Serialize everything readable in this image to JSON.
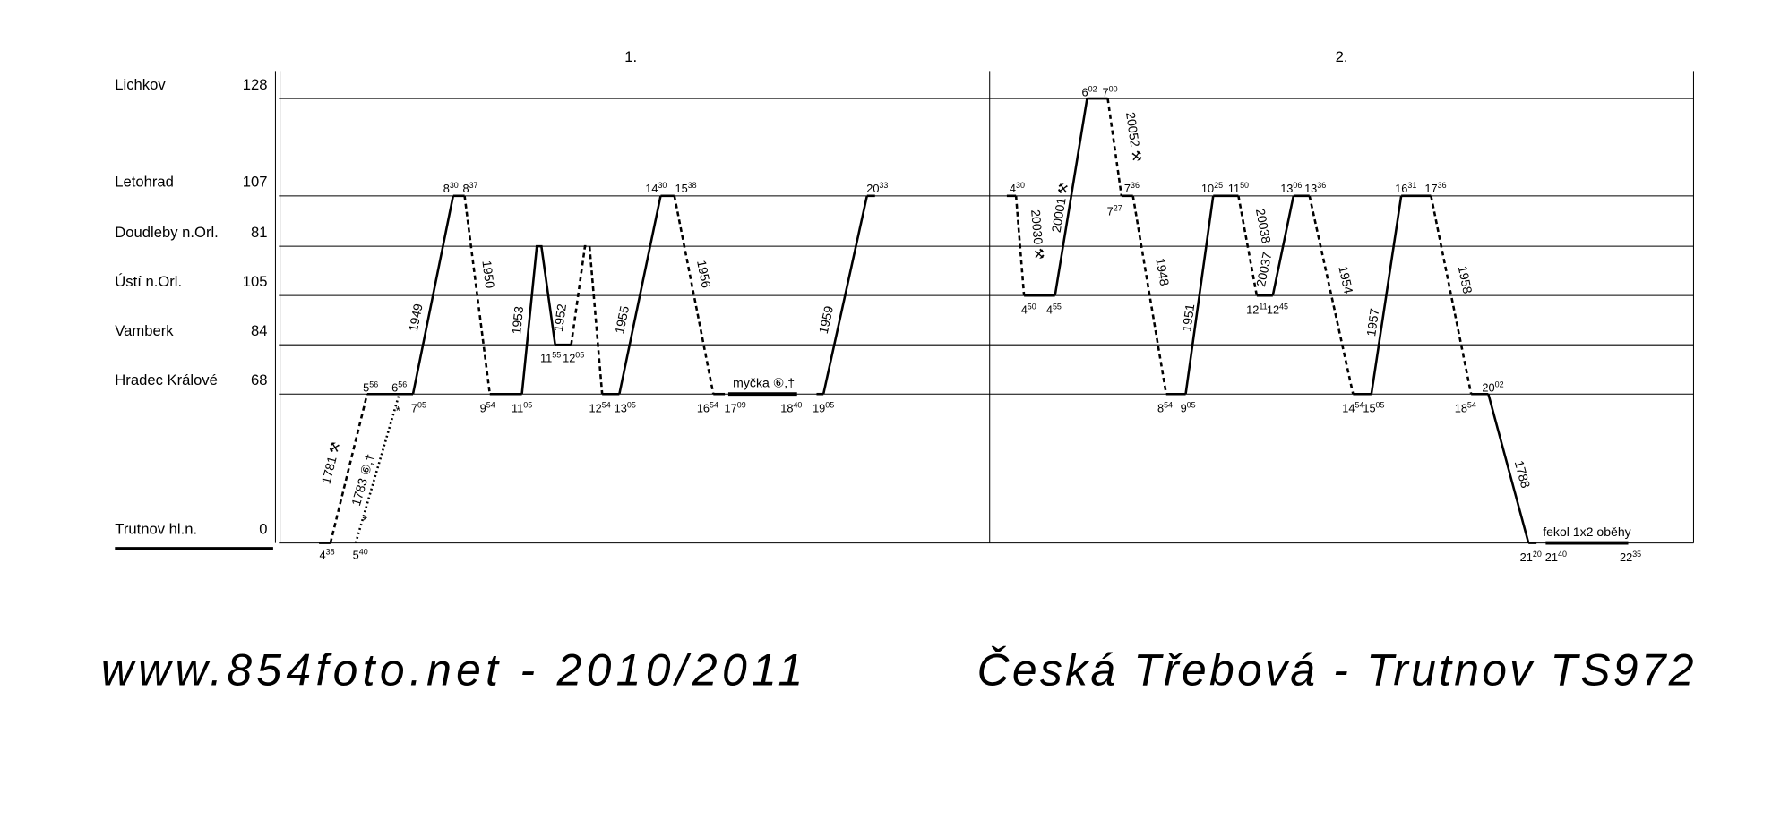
{
  "days": [
    "1.",
    "2."
  ],
  "stations": [
    {
      "name": "Lichkov",
      "number": 128
    },
    {
      "name": "Letohrad",
      "number": 107
    },
    {
      "name": "Doudleby n.Orl.",
      "number": 81
    },
    {
      "name": "Ústí n.Orl.",
      "number": 105
    },
    {
      "name": "Vamberk",
      "number": 84
    },
    {
      "name": "Hradec Králové",
      "number": 68
    },
    {
      "name": "Trutnov hl.n.",
      "number": 0
    }
  ],
  "trains": [
    "1781 ⚒",
    "1783 ⑥,†",
    "1949",
    "1950",
    "1953",
    "1952",
    "1955",
    "1956",
    "1959",
    "20030 ⚒",
    "20001 ⚒",
    "20052 ⚒",
    "1948",
    "1951",
    "20038",
    "20037",
    "1954",
    "1957",
    "1958",
    "1788"
  ],
  "markers": [
    "*",
    "*"
  ],
  "notes": [
    "myčka ⑥,†",
    "fekol  1x2  oběhy"
  ],
  "times": [
    {
      "h": "4",
      "m": "38"
    },
    {
      "h": "5",
      "m": "40"
    },
    {
      "h": "5",
      "m": "56"
    },
    {
      "h": "6",
      "m": "56"
    },
    {
      "h": "7",
      "m": "05"
    },
    {
      "h": "8",
      "m": "30"
    },
    {
      "h": "8",
      "m": "37"
    },
    {
      "h": "9",
      "m": "54"
    },
    {
      "h": "11",
      "m": "05"
    },
    {
      "h": "11",
      "m": "55"
    },
    {
      "h": "12",
      "m": "05"
    },
    {
      "h": "12",
      "m": "54"
    },
    {
      "h": "13",
      "m": "05"
    },
    {
      "h": "14",
      "m": "30"
    },
    {
      "h": "15",
      "m": "38"
    },
    {
      "h": "16",
      "m": "54"
    },
    {
      "h": "17",
      "m": "09"
    },
    {
      "h": "18",
      "m": "40"
    },
    {
      "h": "19",
      "m": "05"
    },
    {
      "h": "20",
      "m": "33"
    },
    {
      "h": "6",
      "m": "02"
    },
    {
      "h": "7",
      "m": "00"
    },
    {
      "h": "4",
      "m": "30"
    },
    {
      "h": "7",
      "m": "36"
    },
    {
      "h": "7",
      "m": "27"
    },
    {
      "h": "4",
      "m": "50"
    },
    {
      "h": "4",
      "m": "55"
    },
    {
      "h": "8",
      "m": "54"
    },
    {
      "h": "9",
      "m": "05"
    },
    {
      "h": "10",
      "m": "25"
    },
    {
      "h": "11",
      "m": "50"
    },
    {
      "h": "12",
      "m": "11"
    },
    {
      "h": "12",
      "m": "45"
    },
    {
      "h": "13",
      "m": "06"
    },
    {
      "h": "13",
      "m": "36"
    },
    {
      "h": "14",
      "m": "54"
    },
    {
      "h": "15",
      "m": "05"
    },
    {
      "h": "16",
      "m": "31"
    },
    {
      "h": "17",
      "m": "36"
    },
    {
      "h": "18",
      "m": "54"
    },
    {
      "h": "20",
      "m": "02"
    },
    {
      "h": "21",
      "m": "20"
    },
    {
      "h": "21",
      "m": "40"
    },
    {
      "h": "22",
      "m": "35"
    }
  ],
  "footer": {
    "left": "www.854foto.net   -   2010/2011",
    "right": "Česká Třebová - Trutnov  TS972"
  }
}
